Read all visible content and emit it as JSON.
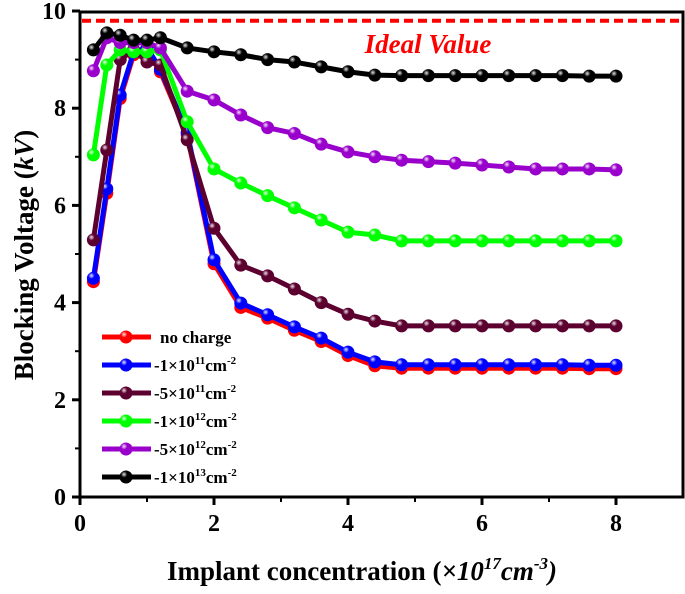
{
  "chart_data": {
    "type": "line",
    "title": "",
    "xlabel": {
      "main": "Implant concentration (",
      "mult": "×10",
      "exp": "17",
      "unit": "cm",
      "unit_exp": "-3",
      "close": ")"
    },
    "ylabel": {
      "main": "Blocking Voltage (",
      "unit": "kV",
      "close": ")"
    },
    "xlim": [
      0,
      9
    ],
    "ylim": [
      0,
      10
    ],
    "xticks": [
      0,
      2,
      4,
      6,
      8
    ],
    "yticks": [
      0,
      2,
      4,
      6,
      8,
      10
    ],
    "grid": false,
    "legend_position": "bottom-left",
    "reference_line": {
      "label": "Ideal Value",
      "y": 9.8,
      "color": "#ff0000"
    },
    "x": [
      0.2,
      0.4,
      0.6,
      0.8,
      1.0,
      1.2,
      1.6,
      2.0,
      2.4,
      2.8,
      3.2,
      3.6,
      4.0,
      4.4,
      4.8,
      5.2,
      5.6,
      6.0,
      6.4,
      6.8,
      7.2,
      7.6,
      8.0
    ],
    "series": [
      {
        "name": "no charge",
        "base": "",
        "exp": "",
        "color": "#ff0000",
        "values": [
          4.43,
          6.25,
          8.2,
          9.1,
          9.2,
          8.75,
          7.45,
          4.8,
          3.9,
          3.68,
          3.43,
          3.2,
          2.91,
          2.7,
          2.65,
          2.65,
          2.65,
          2.65,
          2.65,
          2.65,
          2.65,
          2.64,
          2.64
        ]
      },
      {
        "name": "",
        "base": "-1×10",
        "exp": "11",
        "color": "#0000ff",
        "values": [
          4.5,
          6.34,
          8.27,
          9.15,
          9.25,
          8.8,
          7.5,
          4.88,
          3.99,
          3.75,
          3.5,
          3.27,
          2.98,
          2.78,
          2.72,
          2.72,
          2.72,
          2.72,
          2.72,
          2.72,
          2.72,
          2.71,
          2.71
        ]
      },
      {
        "name": "",
        "base": "-5×10",
        "exp": "11",
        "color": "#5c0030",
        "values": [
          5.29,
          7.14,
          9.0,
          9.2,
          8.95,
          8.89,
          7.35,
          5.53,
          4.77,
          4.55,
          4.28,
          4.0,
          3.76,
          3.62,
          3.52,
          3.52,
          3.52,
          3.52,
          3.52,
          3.52,
          3.52,
          3.52,
          3.52
        ]
      },
      {
        "name": "",
        "base": "-1×10",
        "exp": "12",
        "color": "#00ff00",
        "values": [
          7.04,
          8.89,
          9.2,
          9.16,
          9.16,
          9.2,
          7.72,
          6.75,
          6.46,
          6.2,
          5.95,
          5.7,
          5.45,
          5.39,
          5.27,
          5.27,
          5.27,
          5.27,
          5.27,
          5.27,
          5.27,
          5.27,
          5.27
        ]
      },
      {
        "name": "",
        "base": "-5×10",
        "exp": "12",
        "color": "#9900cc",
        "values": [
          8.77,
          9.45,
          9.35,
          9.35,
          9.35,
          9.24,
          8.35,
          8.17,
          7.86,
          7.6,
          7.48,
          7.26,
          7.1,
          7.0,
          6.93,
          6.9,
          6.87,
          6.83,
          6.79,
          6.75,
          6.75,
          6.75,
          6.73
        ]
      },
      {
        "name": "",
        "base": "-1×10",
        "exp": "13",
        "color": "#000000",
        "values": [
          9.2,
          9.55,
          9.5,
          9.4,
          9.4,
          9.45,
          9.24,
          9.16,
          9.1,
          9.0,
          8.95,
          8.85,
          8.75,
          8.68,
          8.67,
          8.67,
          8.67,
          8.67,
          8.67,
          8.67,
          8.67,
          8.66,
          8.66
        ]
      }
    ],
    "legend_unit": {
      "unit": "cm",
      "unit_exp": "-2"
    }
  }
}
